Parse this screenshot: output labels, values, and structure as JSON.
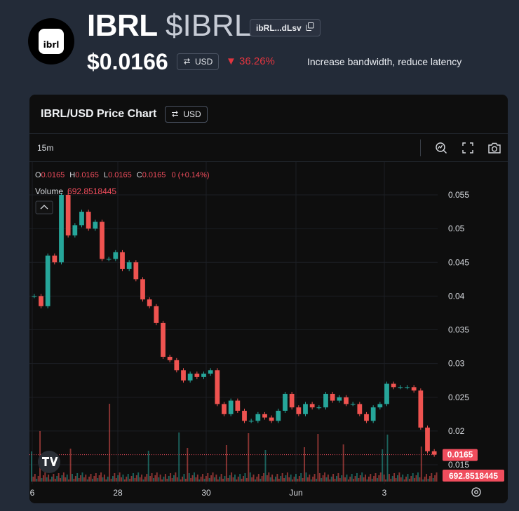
{
  "token": {
    "logo_text": "ibrl",
    "name": "IBRL",
    "ticker": "$IBRL",
    "address_short": "ibRL...dLsv",
    "price": "$0.0166",
    "currency": "USD",
    "change": "▼ 36.26%",
    "description": "Increase bandwidth, reduce latency"
  },
  "chart_panel": {
    "title": "IBRL/USD Price Chart",
    "currency": "USD",
    "timeframe": "15m",
    "ohlc": {
      "o_label": "O",
      "o": "0.0165",
      "h_label": "H",
      "h": "0.0165",
      "l_label": "L",
      "l": "0.0165",
      "c_label": "C",
      "c": "0.0165",
      "change": "0 (+0.14%)"
    },
    "volume_label": "Volume",
    "volume_value": "692.8518445",
    "last_price_tag": "0.0165",
    "volume_tag": "692.8518445",
    "colors": {
      "up": "#26a69a",
      "down": "#ef5350",
      "tag": "#f04d5d"
    }
  },
  "chart_data": {
    "type": "candlestick",
    "x_ticks": [
      "6",
      "28",
      "30",
      "Jun",
      "3"
    ],
    "y_ticks": [
      "0.055",
      "0.05",
      "0.045",
      "0.04",
      "0.035",
      "0.03",
      "0.025",
      "0.02",
      "0.015"
    ],
    "ylim": [
      0.0135,
      0.0575
    ],
    "grid": true,
    "series": [
      {
        "values": [
          0.04,
          0.0385,
          0.046,
          0.045,
          0.055,
          0.049,
          0.0505,
          0.0525,
          0.05,
          0.051,
          0.0455,
          0.0455,
          0.0465,
          0.044,
          0.045,
          0.0425,
          0.0395,
          0.0385,
          0.036,
          0.031,
          0.0305,
          0.029,
          0.0275,
          0.0285,
          0.028,
          0.0285,
          0.029,
          0.024,
          0.0225,
          0.0245,
          0.023,
          0.0215,
          0.0215,
          0.0225,
          0.022,
          0.0215,
          0.023,
          0.0255,
          0.0235,
          0.0225,
          0.024,
          0.0235,
          0.0235,
          0.0255,
          0.0245,
          0.025,
          0.024,
          0.024,
          0.0225,
          0.0215,
          0.0235,
          0.024,
          0.027,
          0.0265,
          0.0265,
          0.0265,
          0.026,
          0.0205,
          0.017,
          0.0165
        ]
      }
    ]
  }
}
